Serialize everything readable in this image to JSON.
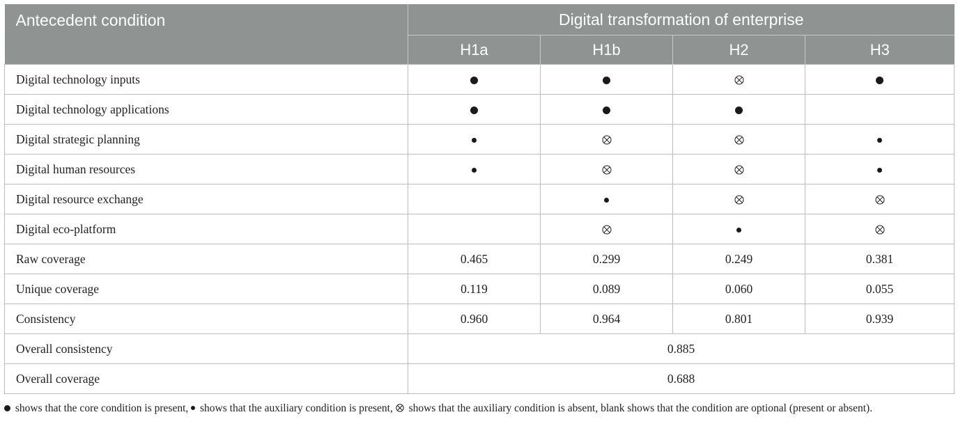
{
  "chart_data": {
    "type": "table",
    "header": {
      "antecedent_label": "Antecedent condition",
      "group_label": "Digital transformation of enterprise",
      "columns": [
        "H1a",
        "H1b",
        "H2",
        "H3"
      ]
    },
    "condition_rows": [
      {
        "label": "Digital technology inputs",
        "cells": [
          "core",
          "core",
          "absent",
          "core"
        ]
      },
      {
        "label": "Digital technology applications",
        "cells": [
          "core",
          "core",
          "core",
          ""
        ]
      },
      {
        "label": "Digital strategic planning",
        "cells": [
          "aux",
          "absent",
          "absent",
          "aux"
        ]
      },
      {
        "label": "Digital human resources",
        "cells": [
          "aux",
          "absent",
          "absent",
          "aux"
        ]
      },
      {
        "label": "Digital resource exchange",
        "cells": [
          "",
          "aux",
          "absent",
          "absent"
        ]
      },
      {
        "label": "Digital eco-platform",
        "cells": [
          "",
          "absent",
          "aux",
          "absent"
        ]
      }
    ],
    "metric_rows": [
      {
        "label": "Raw coverage",
        "values": [
          "0.465",
          "0.299",
          "0.249",
          "0.381"
        ]
      },
      {
        "label": "Unique coverage",
        "values": [
          "0.119",
          "0.089",
          "0.060",
          "0.055"
        ]
      },
      {
        "label": "Consistency",
        "values": [
          "0.960",
          "0.964",
          "0.801",
          "0.939"
        ]
      }
    ],
    "overall_rows": [
      {
        "label": "Overall consistency",
        "value": "0.885"
      },
      {
        "label": "Overall coverage",
        "value": "0.688"
      }
    ],
    "symbol_legend": {
      "core": "core condition is present",
      "aux": "auxiliary condition is present",
      "absent": "auxiliary condition is absent",
      "blank": "condition are optional (present or absent)"
    }
  },
  "footnote": {
    "part1": " shows that the core condition is present, ",
    "part2": " shows that the auxiliary condition is present, ",
    "part3": " shows that the auxiliary condition is absent, blank shows that the condition are optional (present or absent)."
  },
  "colors": {
    "header_bg": "#8f9493",
    "header_text": "#ffffff",
    "grid": "#b9bdbc"
  },
  "icons": {
    "core": "filled-large-circle-icon",
    "aux": "filled-small-circle-icon",
    "absent": "circled-times-icon"
  }
}
